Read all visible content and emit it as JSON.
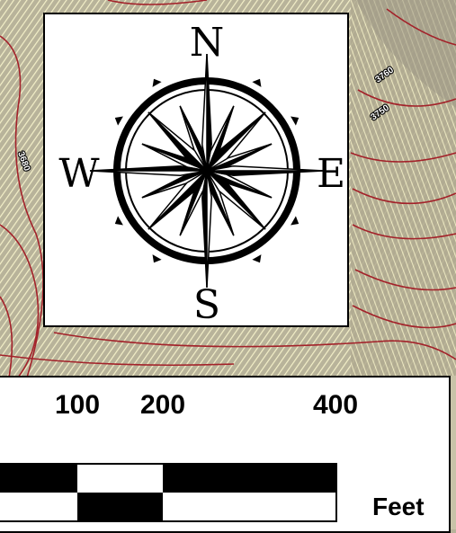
{
  "colors": {
    "map_background": "#b8b39a",
    "contour_light": "#f3efc8",
    "contour_index": "#a3222a",
    "panel_fill": "#ffffff",
    "ink": "#000000"
  },
  "compass": {
    "north": "N",
    "south": "S",
    "east": "E",
    "west": "W",
    "icon": "compass-rose-icon"
  },
  "contour_labels": [
    "3760",
    "3750",
    "3680"
  ],
  "scale_bar": {
    "ticks": [
      "100",
      "200",
      "400"
    ],
    "units": "Feet"
  }
}
